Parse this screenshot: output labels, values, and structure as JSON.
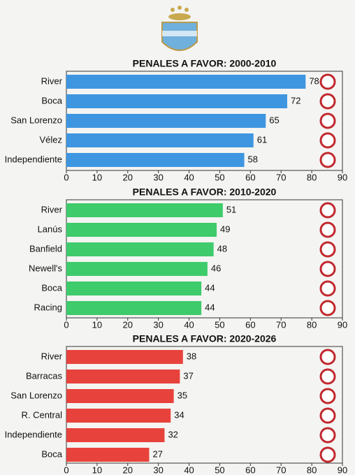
{
  "chart_data": [
    {
      "type": "bar",
      "orientation": "horizontal",
      "title": "PENALES A FAVOR: 2000-2010",
      "categories": [
        "River",
        "Boca",
        "San Lorenzo",
        "Vélez",
        "Independiente"
      ],
      "values": [
        78,
        72,
        65,
        61,
        58
      ],
      "color": "#3e96e1",
      "xlim": [
        0,
        90
      ],
      "xticks": [
        0,
        10,
        20,
        30,
        40,
        50,
        60,
        70,
        80,
        90
      ]
    },
    {
      "type": "bar",
      "orientation": "horizontal",
      "title": "PENALES A FAVOR: 2010-2020",
      "categories": [
        "River",
        "Lanús",
        "Banfield",
        "Newell's",
        "Boca",
        "Racing"
      ],
      "values": [
        51,
        49,
        48,
        46,
        44,
        44
      ],
      "color": "#3ecb6b",
      "xlim": [
        0,
        90
      ],
      "xticks": [
        0,
        10,
        20,
        30,
        40,
        50,
        60,
        70,
        80,
        90
      ]
    },
    {
      "type": "bar",
      "orientation": "horizontal",
      "title": "PENALES A FAVOR: 2020-2026",
      "categories": [
        "River",
        "Barracas",
        "San Lorenzo",
        "R. Central",
        "Independiente",
        "Boca"
      ],
      "values": [
        38,
        37,
        35,
        34,
        32,
        27
      ],
      "color": "#e8423c",
      "xlim": [
        0,
        90
      ],
      "xticks": [
        0,
        10,
        20,
        30,
        40,
        50,
        60,
        70,
        80,
        90
      ]
    }
  ]
}
